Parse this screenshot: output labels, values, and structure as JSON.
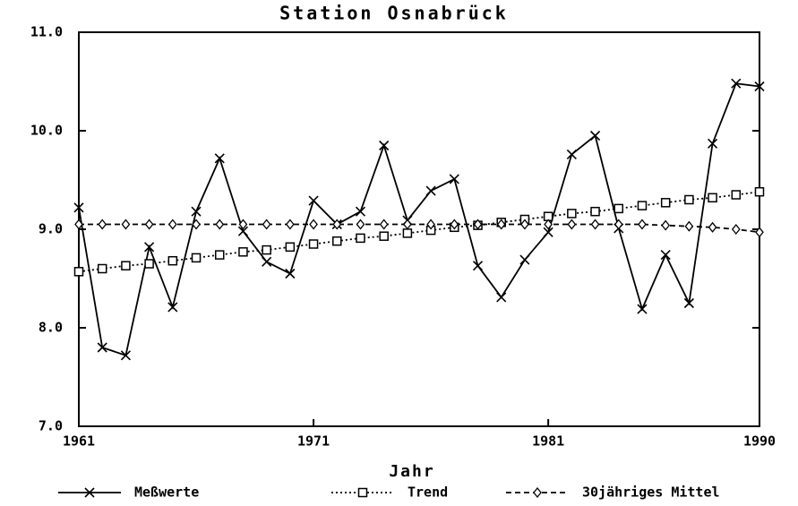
{
  "chart_data": {
    "type": "line",
    "title": "Station Osnabrück",
    "xlabel": "Jahr",
    "x": [
      1961,
      1962,
      1963,
      1964,
      1965,
      1966,
      1967,
      1968,
      1969,
      1970,
      1971,
      1972,
      1973,
      1974,
      1975,
      1976,
      1977,
      1978,
      1979,
      1980,
      1981,
      1982,
      1983,
      1984,
      1985,
      1986,
      1987,
      1988,
      1989,
      1990
    ],
    "series": [
      {
        "name": "Meßwerte",
        "color": "#000000",
        "linestyle": "solid",
        "marker": "x",
        "values": [
          9.22,
          7.8,
          7.72,
          8.82,
          8.21,
          9.18,
          9.72,
          8.98,
          8.67,
          8.55,
          9.29,
          9.05,
          9.18,
          9.85,
          9.09,
          9.39,
          9.51,
          8.63,
          8.31,
          8.69,
          8.97,
          9.76,
          9.95,
          9.01,
          8.19,
          8.74,
          8.25,
          9.87,
          10.48,
          10.45
        ]
      },
      {
        "name": "Trend",
        "color": "#000000",
        "linestyle": "dotted",
        "marker": "square",
        "values": [
          8.57,
          8.6,
          8.63,
          8.65,
          8.68,
          8.71,
          8.74,
          8.77,
          8.79,
          8.82,
          8.85,
          8.88,
          8.91,
          8.93,
          8.96,
          8.99,
          9.02,
          9.04,
          9.07,
          9.1,
          9.13,
          9.16,
          9.18,
          9.21,
          9.24,
          9.27,
          9.3,
          9.32,
          9.35,
          9.38
        ]
      },
      {
        "name": "30jähriges Mittel",
        "color": "#000000",
        "linestyle": "dashed",
        "marker": "diamond",
        "values": [
          9.05,
          9.05,
          9.05,
          9.05,
          9.05,
          9.05,
          9.05,
          9.05,
          9.05,
          9.05,
          9.05,
          9.05,
          9.05,
          9.05,
          9.05,
          9.05,
          9.05,
          9.05,
          9.05,
          9.05,
          9.05,
          9.05,
          9.05,
          9.05,
          9.05,
          9.04,
          9.03,
          9.02,
          9.0,
          8.97
        ]
      }
    ],
    "xlim": [
      1961,
      1990
    ],
    "xticks": [
      1961,
      1971,
      1981,
      1990
    ],
    "ylim": [
      7,
      11
    ],
    "yticks": [
      {
        "value": 7,
        "label": "7.0"
      },
      {
        "value": 8,
        "label": "8.0"
      },
      {
        "value": 9,
        "label": "9.0"
      },
      {
        "value": 10,
        "label": "10.0"
      },
      {
        "value": 11,
        "label": "11.0"
      }
    ],
    "legend": "bottom"
  }
}
